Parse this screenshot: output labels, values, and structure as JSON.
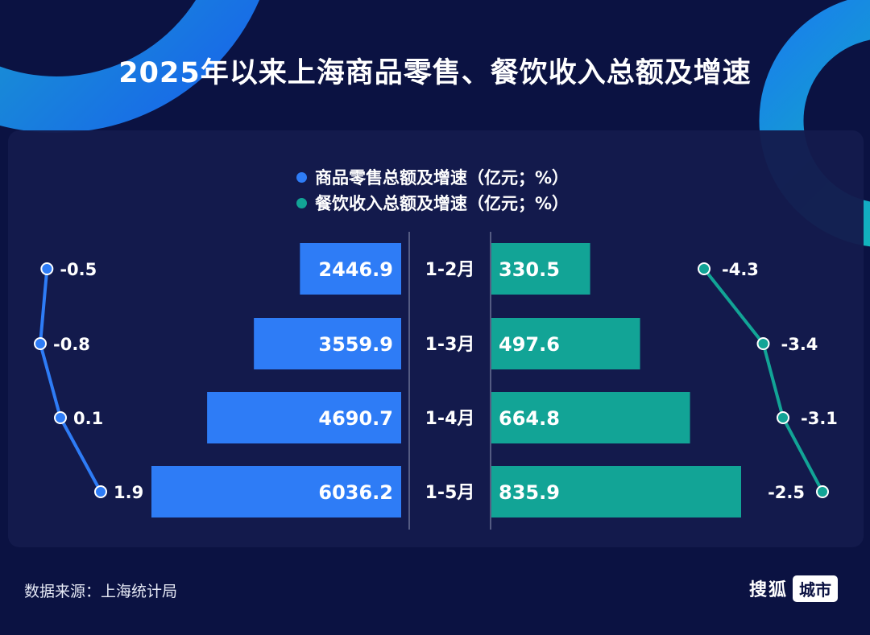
{
  "title": "2025年以来上海商品零售、餐饮收入总额及增速",
  "source": "数据来源：上海统计局",
  "brand": {
    "name": "搜狐",
    "tag": "城市"
  },
  "colors": {
    "retail": "#2e7cf6",
    "catering": "#12a496",
    "background": "#0b1242",
    "panel": "#141b4d"
  },
  "chart_data": {
    "type": "bar",
    "categories": [
      "1-2月",
      "1-3月",
      "1-4月",
      "1-5月"
    ],
    "series": [
      {
        "name": "商品零售总额及增速（亿元；%）",
        "values": [
          2446.9,
          3559.9,
          4690.7,
          6036.2
        ],
        "labels": [
          "2446.9",
          "3559.9",
          "4690.7",
          "6036.2"
        ],
        "growth": [
          -0.5,
          -0.8,
          0.1,
          1.9
        ],
        "growth_labels": [
          "-0.5",
          "-0.8",
          "0.1",
          "1.9"
        ],
        "color": "#2e7cf6"
      },
      {
        "name": "餐饮收入总额及增速（亿元；%）",
        "values": [
          330.5,
          497.6,
          664.8,
          835.9
        ],
        "labels": [
          "330.5",
          "497.6",
          "664.8",
          "835.9"
        ],
        "growth": [
          -4.3,
          -3.4,
          -3.1,
          -2.5
        ],
        "growth_labels": [
          "-4.3",
          "-3.4",
          "-3.1",
          "-2.5"
        ],
        "color": "#12a496"
      }
    ],
    "legend_position": "top-center"
  }
}
